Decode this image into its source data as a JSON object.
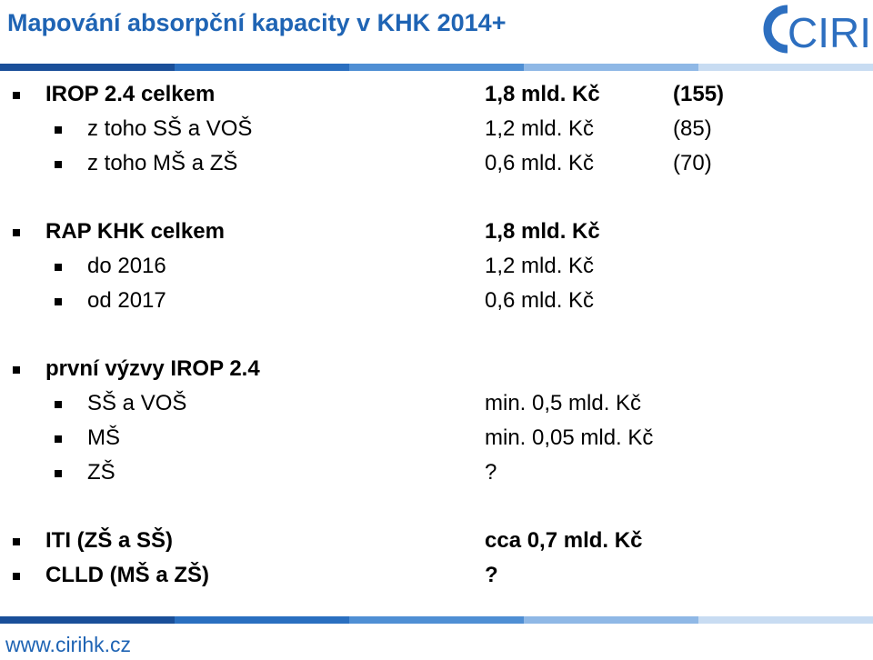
{
  "header": {
    "title": "Mapování absorpční kapacity v KHK 2014+",
    "logo": "CIRI"
  },
  "groups": [
    {
      "rows": [
        {
          "label": "IROP 2.4 celkem",
          "value": "1,8 mld. Kč",
          "count": "(155)"
        }
      ],
      "subrows": [
        {
          "label": "z toho SŠ a VOŠ",
          "value": "1,2 mld. Kč",
          "count": "(85)"
        },
        {
          "label": "z toho MŠ a ZŠ",
          "value": "0,6 mld. Kč",
          "count": "(70)"
        }
      ]
    },
    {
      "rows": [
        {
          "label": "RAP KHK celkem",
          "value": "1,8 mld. Kč"
        }
      ],
      "subrows": [
        {
          "label": "do 2016",
          "value": "1,2 mld. Kč"
        },
        {
          "label": "od 2017",
          "value": "0,6 mld. Kč"
        }
      ]
    },
    {
      "rows": [
        {
          "label": "první výzvy IROP 2.4"
        }
      ],
      "subrows": [
        {
          "label": "SŠ a VOŠ",
          "value": "min. 0,5 mld. Kč"
        },
        {
          "label": "MŠ",
          "value": "min. 0,05 mld. Kč"
        },
        {
          "label": "ZŠ",
          "value": "?"
        }
      ]
    },
    {
      "rows": [
        {
          "label": "ITI (ZŠ a SŠ)",
          "value": "cca 0,7 mld. Kč"
        },
        {
          "label": "CLLD (MŠ a ZŠ)",
          "value": "?"
        }
      ],
      "subrows": []
    }
  ],
  "footer": {
    "url": "www.cirihk.cz"
  }
}
